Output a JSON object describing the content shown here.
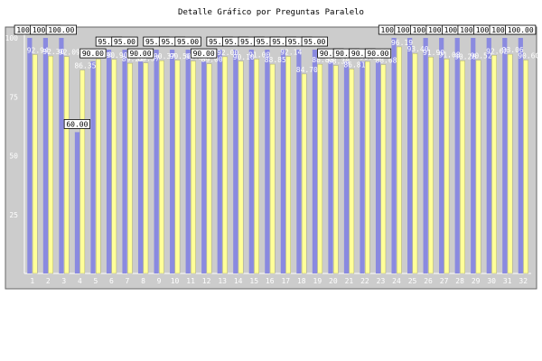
{
  "chart_data": {
    "type": "bar",
    "title": "Detalle Gráfico por Preguntas Paralelo",
    "xlabel": "",
    "ylabel": "",
    "ylim": [
      0,
      100
    ],
    "yticks": [
      25,
      50,
      75,
      100
    ],
    "grid": false,
    "legend": "none",
    "categories": [
      "1",
      "2",
      "3",
      "4",
      "5",
      "6",
      "7",
      "8",
      "9",
      "10",
      "11",
      "12",
      "13",
      "14",
      "15",
      "16",
      "17",
      "18",
      "19",
      "20",
      "21",
      "22",
      "23",
      "24",
      "25",
      "26",
      "27",
      "28",
      "29",
      "30",
      "31",
      "32"
    ],
    "series": [
      {
        "values": [
          100,
          100,
          100,
          60,
          90,
          95,
          95,
          90,
          95,
          95,
          95,
          90,
          95,
          95,
          95,
          95,
          95,
          95,
          95,
          90,
          90,
          90,
          90,
          100,
          100,
          100,
          100,
          100,
          100,
          100,
          100,
          100
        ]
      },
      {
        "values": [
          92.94,
          92.3,
          92.09,
          86.35,
          91.0,
          90.9,
          89.23,
          89.37,
          90.37,
          90.5,
          90.2,
          89.0,
          92.0,
          90.1,
          91.0,
          88.85,
          92.14,
          84.7,
          88.83,
          88.3,
          86.81,
          90.0,
          88.68,
          96.19,
          93.4,
          91.9,
          91.08,
          90.28,
          90.52,
          92.62,
          93.06,
          90.6
        ]
      }
    ],
    "value_labels": {
      "blue": [
        "100.00",
        "100.00",
        "100.00",
        "60.00",
        "90.00",
        "95.00",
        "95.00",
        "90.00",
        "95.00",
        "95.00",
        "95.00",
        "90.00",
        "95.00",
        "95.00",
        "95.00",
        "95.00",
        "95.00",
        "95.00",
        "95.00",
        "90.00",
        "90.00",
        "90.00",
        "90.00",
        "100.00",
        "100.00",
        "100.00",
        "100.00",
        "100.00",
        "100.00",
        "100.00",
        "100.00",
        "100.00"
      ],
      "yellow": [
        "92.94",
        "92.30",
        "92.09",
        "86.35",
        "91.00",
        "90.90",
        "89.23",
        "89.37",
        "90.37",
        "90.50",
        "90.20",
        "89.00",
        "92.00",
        "90.10",
        "91.00",
        "88.85",
        "92.14",
        "84.70",
        "88.83",
        "88.30",
        "86.81",
        "90.00",
        "88.68",
        "96.19",
        "93.40",
        "91.90",
        "91.08",
        "90.28",
        "90.52",
        "92.62",
        "93.06",
        "90.60"
      ]
    },
    "colors": {
      "background": "#cccccc",
      "blue": "#8a8ae0",
      "yellow": "#ffff99",
      "axis": "#ffffff",
      "label_box": "#ffffff"
    }
  }
}
